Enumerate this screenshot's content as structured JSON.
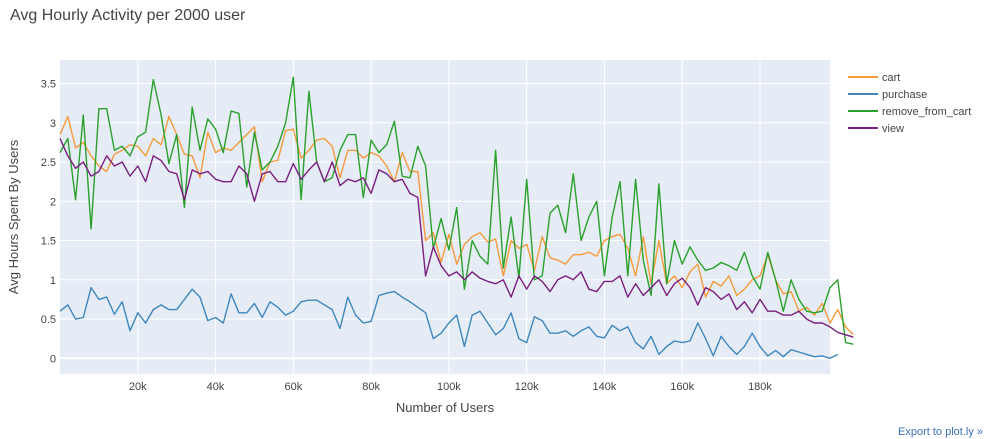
{
  "chart_data": {
    "type": "line",
    "title": "Avg Hourly Activity per 2000 user",
    "xlabel": "Number of Users",
    "ylabel": "Avg Hours Spent By Users",
    "xlim": [
      0,
      198000
    ],
    "ylim": [
      -0.2,
      3.8
    ],
    "x_ticks": [
      20000,
      40000,
      60000,
      80000,
      100000,
      120000,
      140000,
      160000,
      180000
    ],
    "x_tick_labels": [
      "20k",
      "40k",
      "60k",
      "80k",
      "100k",
      "120k",
      "140k",
      "160k",
      "180k"
    ],
    "y_ticks": [
      0,
      0.5,
      1,
      1.5,
      2,
      2.5,
      3,
      3.5
    ],
    "y_tick_labels": [
      "0",
      "0.5",
      "1",
      "1.5",
      "2",
      "2.5",
      "3",
      "3.5"
    ],
    "grid": true,
    "legend_position": "top-right",
    "x_step": 2000,
    "series": [
      {
        "name": "cart",
        "color": "#f59b3c",
        "values": [
          2.85,
          3.08,
          2.68,
          2.75,
          2.58,
          2.45,
          2.38,
          2.6,
          2.65,
          2.72,
          2.7,
          2.58,
          2.8,
          2.72,
          3.08,
          2.85,
          2.6,
          2.58,
          2.3,
          2.88,
          2.62,
          2.68,
          2.65,
          2.75,
          2.85,
          2.95,
          2.25,
          2.5,
          2.52,
          2.9,
          2.92,
          2.55,
          2.65,
          2.78,
          2.8,
          2.7,
          2.3,
          2.65,
          2.65,
          2.55,
          2.62,
          2.58,
          2.45,
          2.25,
          2.62,
          2.38,
          2.38,
          1.5,
          1.6,
          1.22,
          1.58,
          1.2,
          1.45,
          1.55,
          1.6,
          1.48,
          1.52,
          1.05,
          1.5,
          1.4,
          1.45,
          1.12,
          1.55,
          1.28,
          1.25,
          1.2,
          1.32,
          1.32,
          1.35,
          1.3,
          1.5,
          1.55,
          1.58,
          1.4,
          1.05,
          1.55,
          0.95,
          1.5,
          0.95,
          1.05,
          0.9,
          1.1,
          1.2,
          0.78,
          0.98,
          0.92,
          1.05,
          0.8,
          0.88,
          1.0,
          1.05,
          1.32,
          1.0,
          0.82,
          0.85,
          0.6,
          0.65,
          0.55,
          0.7,
          0.45,
          0.62,
          0.4,
          0.3
        ]
      },
      {
        "name": "purchase",
        "color": "#3f86bd",
        "values": [
          0.6,
          0.68,
          0.5,
          0.52,
          0.9,
          0.75,
          0.78,
          0.56,
          0.72,
          0.35,
          0.58,
          0.45,
          0.62,
          0.68,
          0.62,
          0.62,
          0.75,
          0.88,
          0.78,
          0.48,
          0.52,
          0.45,
          0.82,
          0.58,
          0.58,
          0.7,
          0.52,
          0.72,
          0.65,
          0.55,
          0.6,
          0.72,
          0.74,
          0.74,
          0.68,
          0.62,
          0.38,
          0.78,
          0.55,
          0.45,
          0.47,
          0.8,
          0.83,
          0.85,
          0.78,
          0.72,
          0.65,
          0.58,
          0.25,
          0.32,
          0.45,
          0.55,
          0.15,
          0.55,
          0.6,
          0.45,
          0.3,
          0.38,
          0.58,
          0.25,
          0.2,
          0.53,
          0.48,
          0.32,
          0.32,
          0.35,
          0.28,
          0.35,
          0.4,
          0.28,
          0.26,
          0.42,
          0.35,
          0.4,
          0.2,
          0.12,
          0.28,
          0.05,
          0.15,
          0.22,
          0.2,
          0.22,
          0.45,
          0.25,
          0.03,
          0.28,
          0.15,
          0.05,
          0.15,
          0.32,
          0.15,
          0.03,
          0.1,
          0.02,
          0.11,
          0.08,
          0.05,
          0.02,
          0.03,
          0.0,
          0.05
        ]
      },
      {
        "name": "remove_from_cart",
        "color": "#2ca02c",
        "values": [
          2.62,
          2.8,
          2.02,
          3.1,
          1.65,
          3.18,
          3.18,
          2.65,
          2.7,
          2.58,
          2.82,
          2.88,
          3.55,
          3.1,
          2.48,
          2.85,
          1.92,
          3.2,
          2.65,
          3.05,
          2.92,
          2.62,
          3.15,
          3.12,
          2.18,
          2.88,
          2.4,
          2.5,
          2.7,
          3.0,
          3.58,
          2.02,
          3.4,
          2.5,
          2.25,
          2.3,
          2.65,
          2.85,
          2.85,
          2.05,
          2.78,
          2.62,
          2.72,
          3.02,
          2.32,
          2.3,
          2.7,
          2.45,
          1.4,
          1.78,
          1.38,
          1.92,
          0.88,
          1.5,
          1.3,
          1.2,
          2.65,
          1.15,
          1.8,
          1.02,
          2.28,
          1.0,
          1.05,
          1.85,
          1.95,
          1.6,
          2.35,
          1.5,
          1.8,
          2.0,
          1.05,
          1.8,
          2.25,
          1.05,
          2.28,
          1.25,
          0.8,
          2.22,
          0.95,
          1.5,
          1.2,
          1.42,
          1.25,
          1.12,
          1.15,
          1.22,
          1.18,
          1.12,
          1.35,
          1.05,
          0.88,
          1.35,
          1.0,
          0.6,
          1.0,
          0.75,
          0.6,
          0.58,
          0.6,
          0.9,
          1.0,
          0.2,
          0.18
        ]
      },
      {
        "name": "view",
        "color": "#7a1f7e",
        "values": [
          2.8,
          2.58,
          2.42,
          2.5,
          2.32,
          2.38,
          2.58,
          2.45,
          2.5,
          2.32,
          2.45,
          2.25,
          2.58,
          2.52,
          2.38,
          2.35,
          2.02,
          2.4,
          2.35,
          2.38,
          2.28,
          2.25,
          2.25,
          2.45,
          2.35,
          2.0,
          2.35,
          2.38,
          2.25,
          2.25,
          2.48,
          2.28,
          2.4,
          2.5,
          2.25,
          2.5,
          2.2,
          2.28,
          2.25,
          2.3,
          2.1,
          2.4,
          2.35,
          2.25,
          2.28,
          2.1,
          2.05,
          1.05,
          1.42,
          1.18,
          1.05,
          1.1,
          1.0,
          1.1,
          1.02,
          0.98,
          0.95,
          1.0,
          0.78,
          1.05,
          0.88,
          1.05,
          0.98,
          0.85,
          1.0,
          1.05,
          1.0,
          1.1,
          0.88,
          0.85,
          0.98,
          0.98,
          1.05,
          0.78,
          0.95,
          0.8,
          0.9,
          1.0,
          0.8,
          0.95,
          1.02,
          0.9,
          0.68,
          0.9,
          0.85,
          0.75,
          0.82,
          0.62,
          0.72,
          0.58,
          0.75,
          0.6,
          0.6,
          0.55,
          0.55,
          0.6,
          0.5,
          0.45,
          0.45,
          0.4,
          0.33,
          0.3,
          0.27
        ]
      }
    ]
  },
  "export_label": "Export to plot.ly »"
}
